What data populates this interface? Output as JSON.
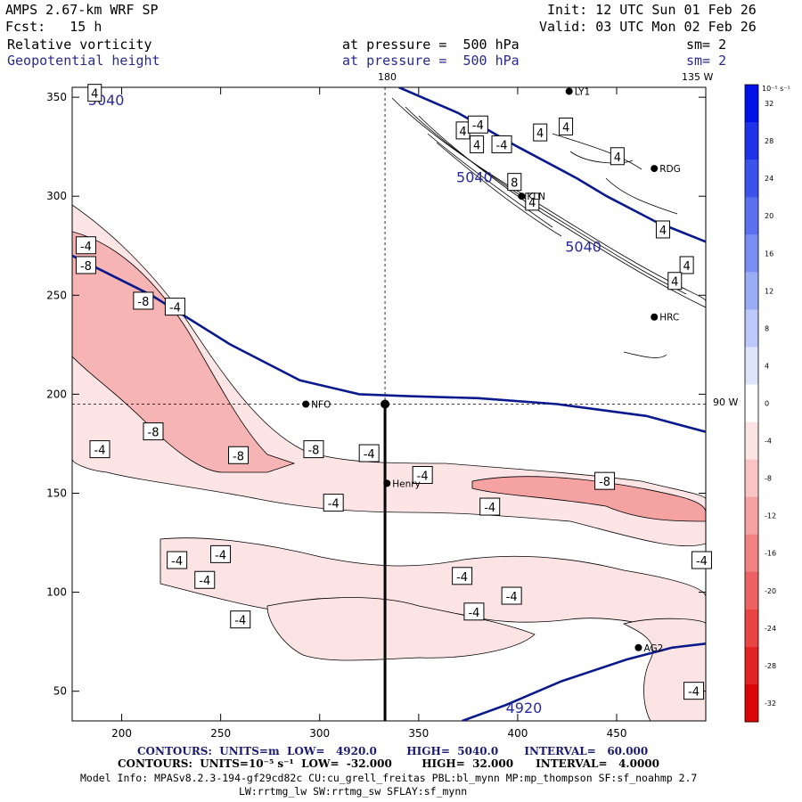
{
  "header": {
    "model": "AMPS 2.67-km WRF SP",
    "init": "Init: 12 UTC Sun 01 Feb 26",
    "fcst": "Fcst:   15 h",
    "valid": "Valid: 03 UTC Mon 02 Feb 26",
    "field1": "Relative vorticity",
    "field1_level": "at pressure =  500 hPa",
    "field1_sm": "sm= 2",
    "field2": "Geopotential height",
    "field2_level": "at pressure =  500 hPa",
    "field2_sm": "sm= 2"
  },
  "map_labels": {
    "lon_180": "180",
    "lon_135w": "135 W",
    "lat_90w": "90 W"
  },
  "stations": [
    {
      "name": "RDG",
      "x": 469,
      "y": 314
    },
    {
      "name": "KLN",
      "x": 402,
      "y": 300
    },
    {
      "name": "HRC",
      "x": 469,
      "y": 239
    },
    {
      "name": "NFO",
      "x": 293,
      "y": 195
    },
    {
      "name": "Henry",
      "x": 334,
      "y": 155
    },
    {
      "name": "AG2",
      "x": 461,
      "y": 72
    },
    {
      "name": "LY1",
      "x": 426,
      "y": 353
    }
  ],
  "chart_data": {
    "type": "contour",
    "title": "Relative vorticity and Geopotential height at 500 hPa",
    "xlim": [
      175,
      495
    ],
    "ylim": [
      35,
      355
    ],
    "xticks": [
      200,
      250,
      300,
      350,
      400,
      450
    ],
    "yticks": [
      50,
      100,
      150,
      200,
      250,
      300,
      350
    ],
    "cross_section": {
      "x": 333,
      "y": 195
    },
    "height_contours": {
      "units": "m",
      "low": 4920.0,
      "high": 5040.0,
      "interval": 60.0,
      "labels": [
        {
          "text": "5040",
          "x": 183,
          "y": 346
        },
        {
          "text": "5040",
          "x": 369,
          "y": 307
        },
        {
          "text": "5040",
          "x": 424,
          "y": 272
        },
        {
          "text": "4920",
          "x": 394,
          "y": 39
        }
      ],
      "lines": [
        [
          [
            340,
            355
          ],
          [
            370,
            342
          ],
          [
            400,
            325
          ],
          [
            430,
            309
          ],
          [
            445,
            300
          ],
          [
            470,
            287
          ],
          [
            495,
            277
          ]
        ],
        [
          [
            175,
            270
          ],
          [
            215,
            250
          ],
          [
            255,
            225
          ],
          [
            290,
            207
          ],
          [
            320,
            200
          ],
          [
            345,
            199
          ],
          [
            380,
            198
          ],
          [
            420,
            195
          ],
          [
            465,
            189
          ],
          [
            495,
            181
          ]
        ],
        [
          [
            372,
            35
          ],
          [
            394,
            43
          ],
          [
            422,
            55
          ],
          [
            455,
            66
          ],
          [
            478,
            72
          ],
          [
            495,
            74
          ]
        ]
      ]
    },
    "vorticity_contours": {
      "units": "10^-5 s^-1",
      "low": -32.0,
      "high": 32.0,
      "interval": 4.0,
      "labels": [
        {
          "text": "-4",
          "x": 177,
          "y": 275
        },
        {
          "text": "-8",
          "x": 177,
          "y": 265
        },
        {
          "text": "-8",
          "x": 206,
          "y": 247
        },
        {
          "text": "-4",
          "x": 222,
          "y": 244
        },
        {
          "text": "-8",
          "x": 211,
          "y": 181
        },
        {
          "text": "-4",
          "x": 184,
          "y": 172
        },
        {
          "text": "-8",
          "x": 254,
          "y": 169
        },
        {
          "text": "-8",
          "x": 292,
          "y": 172
        },
        {
          "text": "-4",
          "x": 320,
          "y": 170
        },
        {
          "text": "-4",
          "x": 347,
          "y": 159
        },
        {
          "text": "-4",
          "x": 381,
          "y": 143
        },
        {
          "text": "-8",
          "x": 439,
          "y": 156
        },
        {
          "text": "-4",
          "x": 302,
          "y": 145
        },
        {
          "text": "-4",
          "x": 245,
          "y": 119
        },
        {
          "text": "-4",
          "x": 223,
          "y": 116
        },
        {
          "text": "-4",
          "x": 367,
          "y": 108
        },
        {
          "text": "-4",
          "x": 237,
          "y": 106
        },
        {
          "text": "-4",
          "x": 392,
          "y": 98
        },
        {
          "text": "-4",
          "x": 373,
          "y": 90
        },
        {
          "text": "-4",
          "x": 255,
          "y": 86
        },
        {
          "text": "-4",
          "x": 488,
          "y": 116
        },
        {
          "text": "-4",
          "x": 484,
          "y": 50
        },
        {
          "text": "4",
          "x": 183,
          "y": 352
        },
        {
          "text": "4",
          "x": 369,
          "y": 333
        },
        {
          "text": "4",
          "x": 376,
          "y": 326
        },
        {
          "text": "-4",
          "x": 375,
          "y": 336
        },
        {
          "text": "-4",
          "x": 387,
          "y": 326
        },
        {
          "text": "4",
          "x": 408,
          "y": 332
        },
        {
          "text": "4",
          "x": 421,
          "y": 335
        },
        {
          "text": "4",
          "x": 447,
          "y": 320
        },
        {
          "text": "8",
          "x": 395,
          "y": 307
        },
        {
          "text": "4",
          "x": 404,
          "y": 297
        },
        {
          "text": "4",
          "x": 470,
          "y": 283
        },
        {
          "text": "4",
          "x": 482,
          "y": 265
        },
        {
          "text": "4",
          "x": 476,
          "y": 257
        }
      ]
    },
    "colorbar": {
      "unit_label": "10⁻⁵ s⁻¹",
      "ticks": [
        32,
        28,
        24,
        20,
        16,
        12,
        8,
        4,
        0,
        -4,
        -8,
        -12,
        -16,
        -20,
        -24,
        -28,
        -32
      ],
      "colors": [
        "#0010e8",
        "#1e32ea",
        "#3c52ec",
        "#5a70ee",
        "#7a8ef2",
        "#9aacf4",
        "#bcc8f8",
        "#dde4fb",
        "#ffffff",
        "#fde4e4",
        "#f9c4c4",
        "#f5a2a2",
        "#f18282",
        "#ed6262",
        "#e84444",
        "#e22424",
        "#dc0505"
      ]
    }
  },
  "footer": {
    "line1_prefix": "CONTOURS:  UNITS=m  LOW=   4920.0        HIGH=  5040.0       INTERVAL=   60.000",
    "line2_prefix": "CONTOURS:  UNITS=10⁻⁵ s⁻¹  LOW=  -32.000        HIGH=  32.000      INTERVAL=   4.0000",
    "model_info": "Model Info: MPASv8.2.3-194-gf29cd82c CU:cu_grell_freitas PBL:bl_mynn MP:mp_thompson SF:sf_noahmp 2.7",
    "model_info2": "LW:rrtmg_lw SW:rrtmg_sw SFLAY:sf_mynn"
  }
}
